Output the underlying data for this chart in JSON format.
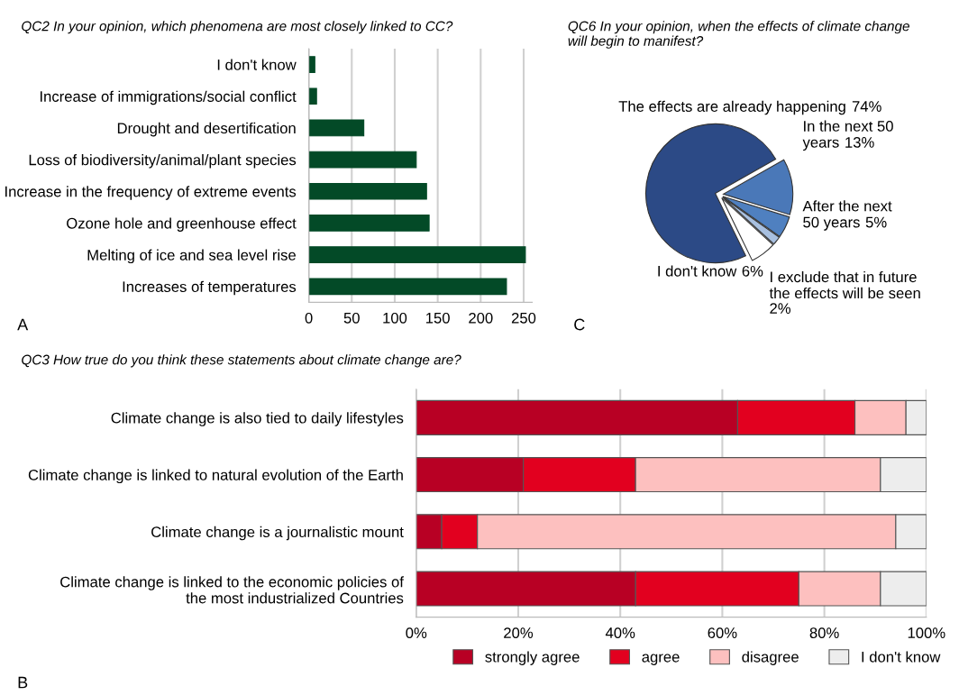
{
  "chart_data": [
    {
      "type": "bar",
      "orientation": "horizontal",
      "title": "QC2 In your opinion, which phenomena are most closely linked to CC?",
      "categories": [
        "I don't know",
        "Increase of immigrations/social conflict",
        "Drought and desertification",
        "Loss of biodiversity/animal/plant species",
        "Increase in the frequency of extreme events",
        "Ozone hole and greenhouse effect",
        "Melting of ice and sea level rise",
        "Increases of temperatures"
      ],
      "values": [
        7,
        9,
        64,
        125,
        137,
        140,
        252,
        230
      ],
      "color": "#034a27",
      "xlim": [
        0,
        260
      ],
      "xticks": [
        0,
        50,
        100,
        150,
        200,
        250
      ],
      "grid": "x",
      "legend": false,
      "annotations": [
        "A"
      ]
    },
    {
      "type": "pie",
      "title": "QC6 In your opinion, when the effects of climate change\nwill begin to manifest?",
      "categories": [
        "The effects are already happening",
        "In the next 50\nyears",
        "After the next\n50 years",
        "I exclude that in future\nthe effects will be seen\n",
        "I don't know"
      ],
      "values": [
        74,
        13,
        5,
        2,
        6
      ],
      "value_labels": [
        "74%",
        "13%",
        "5%",
        "2%",
        "6%"
      ],
      "colors": [
        "#2c4a86",
        "#4a78b8",
        "#4f80c0",
        "#a8c0e0",
        "#ffffff"
      ],
      "annotations": [
        "C"
      ]
    },
    {
      "type": "bar",
      "orientation": "horizontal",
      "stacked": true,
      "title": "QC3 How true do you think these statements about climate change are?",
      "categories": [
        "Climate change is also tied to daily lifestyles",
        "Climate change is linked to natural evolution of the Earth",
        "Climate change is a journalistic mount",
        "Climate change is linked to the economic policies of\nthe most industrialized Countries"
      ],
      "series": [
        {
          "name": "strongly agree",
          "color": "#b80024",
          "values": [
            63,
            21,
            5,
            43
          ]
        },
        {
          "name": "agree",
          "color": "#e2001f",
          "values": [
            23,
            22,
            7,
            32
          ]
        },
        {
          "name": "disagree",
          "color": "#fdc0bf",
          "values": [
            10,
            48,
            82,
            16
          ]
        },
        {
          "name": "I don't know",
          "color": "#ededed",
          "values": [
            4,
            9,
            6,
            9
          ]
        }
      ],
      "xlim": [
        0,
        100
      ],
      "xticks": [
        {
          "value": 0,
          "label": "0%"
        },
        {
          "value": 20,
          "label": "20%"
        },
        {
          "value": 40,
          "label": "40%"
        },
        {
          "value": 60,
          "label": "60%"
        },
        {
          "value": 80,
          "label": "80%"
        },
        {
          "value": 100,
          "label": "100%"
        }
      ],
      "grid": "x",
      "legend": "bottom",
      "annotations": [
        "B"
      ]
    }
  ]
}
